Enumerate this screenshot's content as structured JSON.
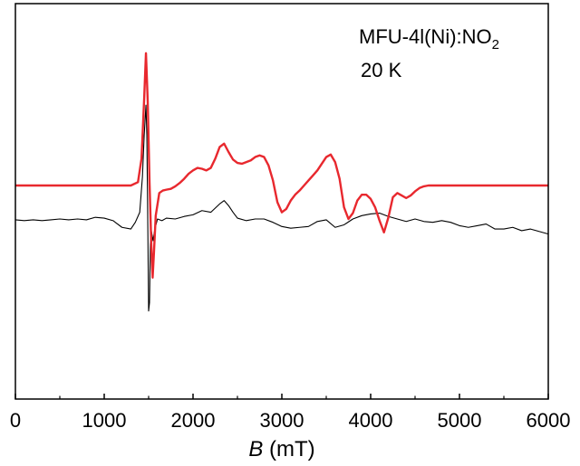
{
  "chart_data": {
    "type": "line",
    "xlabel_italic": "B",
    "xlabel_rest": " (mT)",
    "xlim": [
      0,
      6000
    ],
    "x_ticks": [
      0,
      1000,
      2000,
      3000,
      4000,
      5000,
      6000
    ],
    "x_tick_labels": [
      "0",
      "1000",
      "2000",
      "3000",
      "4000",
      "5000",
      "6000"
    ],
    "y_ticks_shown": false,
    "annotations": {
      "sample_main": "MFU-4l(Ni):NO",
      "sample_sub": "2",
      "temperature": "20 K"
    },
    "series": [
      {
        "color": "#e8282e",
        "x": [
          0,
          1300,
          1380,
          1420,
          1450,
          1470,
          1490,
          1510,
          1530,
          1545,
          1560,
          1580,
          1620,
          1660,
          1700,
          1750,
          1800,
          1850,
          1900,
          1950,
          2000,
          2050,
          2100,
          2150,
          2200,
          2250,
          2300,
          2350,
          2400,
          2450,
          2500,
          2550,
          2600,
          2650,
          2700,
          2750,
          2800,
          2850,
          2900,
          2950,
          3000,
          3050,
          3100,
          3150,
          3200,
          3250,
          3300,
          3350,
          3400,
          3450,
          3500,
          3550,
          3600,
          3650,
          3700,
          3750,
          3800,
          3850,
          3900,
          3950,
          4000,
          4050,
          4100,
          4150,
          4200,
          4250,
          4300,
          4350,
          4400,
          4450,
          4500,
          4550,
          4600,
          4650,
          4700,
          4750,
          4800,
          4850,
          4900,
          5000,
          6000
        ],
        "y": [
          0,
          0,
          0.2,
          1.6,
          5.2,
          7.9,
          5.0,
          0.2,
          -3.5,
          -5.5,
          -4.0,
          -1.8,
          -0.45,
          -0.3,
          -0.25,
          -0.2,
          -0.05,
          0.15,
          0.4,
          0.7,
          0.9,
          1.05,
          1.0,
          0.9,
          1.05,
          1.6,
          2.3,
          2.5,
          2.0,
          1.55,
          1.35,
          1.3,
          1.4,
          1.5,
          1.7,
          1.8,
          1.7,
          1.2,
          0.3,
          -1.0,
          -1.6,
          -1.4,
          -0.9,
          -0.55,
          -0.3,
          0.0,
          0.3,
          0.6,
          0.9,
          1.3,
          1.7,
          1.85,
          1.4,
          0.4,
          -1.3,
          -2.0,
          -1.65,
          -0.9,
          -0.55,
          -0.55,
          -0.8,
          -1.3,
          -2.1,
          -2.8,
          -1.9,
          -0.7,
          -0.45,
          -0.6,
          -0.75,
          -0.6,
          -0.35,
          -0.15,
          -0.05,
          0,
          0,
          0,
          0,
          0,
          0,
          0,
          0
        ]
      },
      {
        "color": "#000000",
        "x": [
          0,
          100,
          200,
          300,
          400,
          500,
          600,
          700,
          800,
          900,
          1000,
          1100,
          1200,
          1300,
          1350,
          1400,
          1430,
          1450,
          1470,
          1480,
          1490,
          1500,
          1510,
          1520,
          1530,
          1540,
          1550,
          1570,
          1600,
          1650,
          1700,
          1800,
          1900,
          2000,
          2100,
          2200,
          2300,
          2350,
          2400,
          2450,
          2500,
          2600,
          2700,
          2800,
          2900,
          3000,
          3100,
          3200,
          3300,
          3400,
          3500,
          3600,
          3700,
          3800,
          3900,
          4000,
          4100,
          4200,
          4300,
          4400,
          4500,
          4600,
          4700,
          4800,
          4900,
          5000,
          5100,
          5200,
          5300,
          5400,
          5500,
          5600,
          5700,
          5800,
          5900,
          6000
        ],
        "y": [
          -2.05,
          -2.1,
          -2.05,
          -2.1,
          -2.05,
          -2.0,
          -2.05,
          -2.0,
          -2.05,
          -1.9,
          -1.95,
          -2.1,
          -2.5,
          -2.6,
          -2.2,
          -1.6,
          0.5,
          3.0,
          4.8,
          3.0,
          -2.0,
          -7.5,
          -7.0,
          -3.5,
          -2.7,
          -3.0,
          -3.3,
          -2.6,
          -2.0,
          -2.1,
          -1.95,
          -2.0,
          -1.85,
          -1.75,
          -1.5,
          -1.6,
          -1.1,
          -0.9,
          -1.2,
          -1.6,
          -1.95,
          -2.1,
          -2.0,
          -2.0,
          -2.2,
          -2.45,
          -2.55,
          -2.5,
          -2.45,
          -2.15,
          -2.05,
          -2.5,
          -2.35,
          -2.0,
          -1.8,
          -1.7,
          -1.65,
          -1.85,
          -2.0,
          -2.15,
          -2.0,
          -2.15,
          -2.2,
          -2.1,
          -2.2,
          -2.4,
          -2.5,
          -2.4,
          -2.3,
          -2.6,
          -2.6,
          -2.5,
          -2.7,
          -2.6,
          -2.75,
          -2.9
        ]
      }
    ]
  }
}
